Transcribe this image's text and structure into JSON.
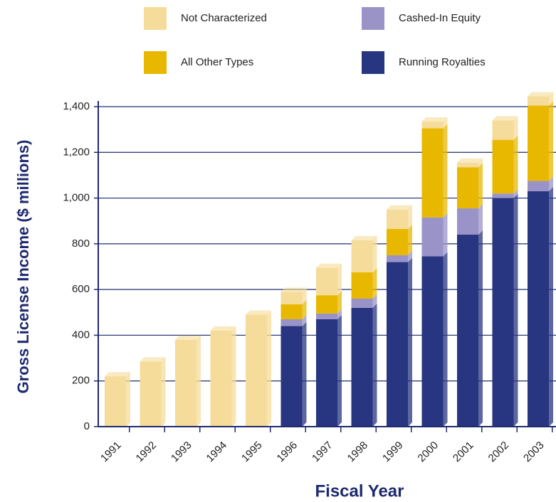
{
  "chart_data": {
    "type": "stacked_bar",
    "xlabel": "Fiscal Year",
    "ylabel": "Gross License Income ($ millions)",
    "categories": [
      "1991",
      "1992",
      "1993",
      "1994",
      "1995",
      "1996",
      "1997",
      "1998",
      "1999",
      "2000",
      "2001",
      "2002",
      "2003"
    ],
    "series": [
      {
        "name": "Running Royalties",
        "color": "#283580",
        "values": [
          null,
          null,
          null,
          null,
          null,
          440,
          470,
          520,
          720,
          745,
          840,
          1000,
          1030
        ]
      },
      {
        "name": "Cashed-In Equity",
        "color": "#9a93c8",
        "values": [
          null,
          null,
          null,
          null,
          null,
          30,
          25,
          40,
          30,
          170,
          115,
          20,
          45
        ]
      },
      {
        "name": "All Other Types",
        "color": "#e8b800",
        "values": [
          null,
          null,
          null,
          null,
          null,
          65,
          80,
          115,
          115,
          390,
          180,
          235,
          330
        ]
      },
      {
        "name": "Not Characterized",
        "color": "#f5dc9a",
        "values": [
          220,
          285,
          380,
          420,
          490,
          55,
          120,
          140,
          85,
          30,
          20,
          85,
          40
        ]
      }
    ],
    "ylim": [
      0,
      1400
    ],
    "yticks": [
      0,
      200,
      400,
      600,
      800,
      {
        "value": 1000,
        "label": "1,000"
      },
      {
        "value": 1200,
        "label": "1,200"
      },
      {
        "value": 1400,
        "label": "1,400"
      }
    ],
    "grid": true
  }
}
